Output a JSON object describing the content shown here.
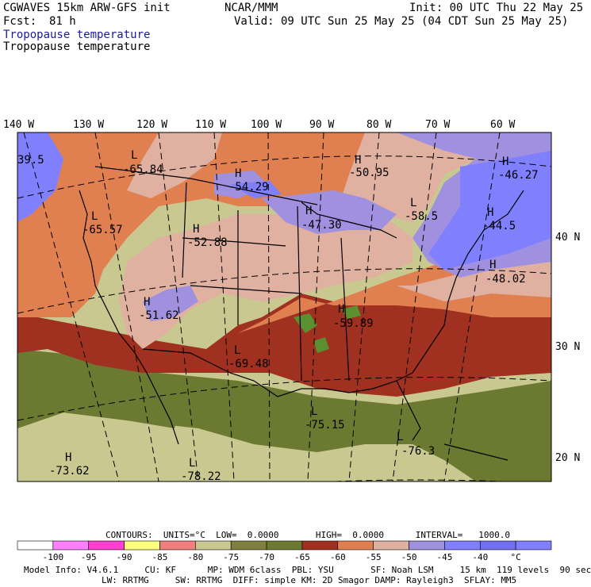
{
  "header": {
    "model": "CGWAVES 15km ARW-GFS init",
    "org": "NCAR/MMM",
    "init": "Init: 00 UTC Thu 22 May 25",
    "fcst_label": "Fcst:",
    "fcst_value": "81 h",
    "valid": "Valid: 09 UTC Sun 25 May 25 (04 CDT Sun 25 May 25)",
    "field_title_blue": "Tropopause temperature",
    "field_title_black": "Tropopause temperature"
  },
  "map": {
    "lon_labels": [
      "140 W",
      "130 W",
      "120 W",
      "110 W",
      "100 W",
      "90 W",
      "80 W",
      "70 W",
      "60 W"
    ],
    "lat_labels": [
      "40 N",
      "30 N",
      "20 N"
    ],
    "extrema": [
      {
        "sym": "L",
        "val": "-65.84"
      },
      {
        "sym": "H",
        "val": "-54.29"
      },
      {
        "sym": "H",
        "val": "-50.95"
      },
      {
        "sym": "H",
        "val": "-46.27"
      },
      {
        "sym": "L",
        "val": "-65.57"
      },
      {
        "sym": "H",
        "val": "-52.88"
      },
      {
        "sym": "H",
        "val": "-47.30"
      },
      {
        "sym": "L",
        "val": "-58.5"
      },
      {
        "sym": "H",
        "val": "-44.5"
      },
      {
        "sym": "H",
        "val": "-48.02"
      },
      {
        "sym": "H",
        "val": "-51.62"
      },
      {
        "sym": "H",
        "val": "-59.89"
      },
      {
        "sym": "L",
        "val": "-69.48"
      },
      {
        "sym": "L",
        "val": "-75.15"
      },
      {
        "sym": "L",
        "val": "-76.3"
      },
      {
        "sym": "H",
        "val": "-73.62"
      },
      {
        "sym": "L",
        "val": "-78.22"
      },
      {
        "sym": "",
        "val": "39.5"
      }
    ]
  },
  "legend": {
    "contours": "CONTOURS:  UNITS=°C  LOW=  0.0000       HIGH=  0.0000      INTERVAL=   1000.0",
    "colors": [
      "#ffffff",
      "#ff80ff",
      "#ff40d0",
      "#ffff80",
      "#f08080",
      "#c8c890",
      "#808040",
      "#6b7a30",
      "#a03020",
      "#e08050",
      "#e0b0a0",
      "#a090e0",
      "#8080ff",
      "#7070f0",
      "#8080ff"
    ],
    "labels": [
      "-100",
      "-95",
      "-90",
      "-85",
      "-80",
      "-75",
      "-70",
      "-65",
      "-60",
      "-55",
      "-50",
      "-45",
      "-40",
      "°C"
    ]
  },
  "footer": {
    "line1": "Model Info: V4.6.1     CU: KF      MP: WDM 6class  PBL: YSU       SF: Noah LSM     15 km  119 levels  90 sec",
    "line2": "LW: RRTMG     SW: RRTMG  DIFF: simple KM: 2D Smagor DAMP: Rayleigh3  SFLAY: MM5"
  },
  "colors": {
    "violet": "#a090e0",
    "blue": "#8080ff",
    "pink": "#e0b0a0",
    "orange": "#e08050",
    "darkred": "#a03020",
    "olive": "#6b7a30",
    "khaki": "#c8c890",
    "green": "#5a9030",
    "title_blue": "#1a1aa0"
  }
}
